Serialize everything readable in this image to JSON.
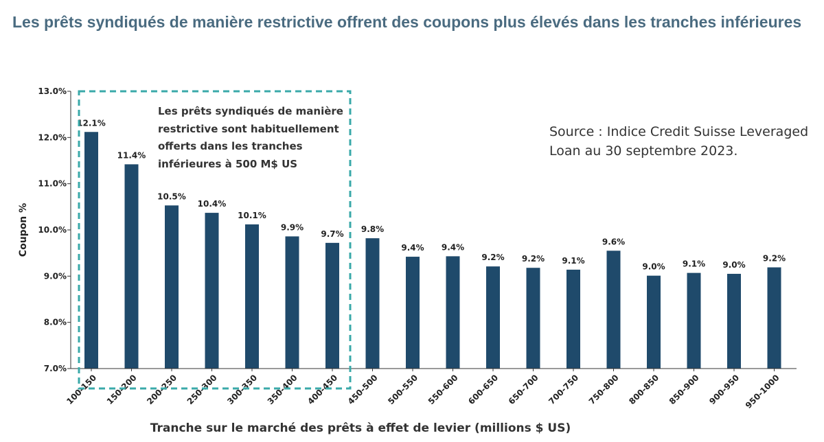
{
  "page": {
    "title": "Les prêts syndiqués de manière restrictive offrent des coupons plus élevés dans les tranches inférieures"
  },
  "annotation": {
    "lines": [
      "Les prêts syndiqués de manière",
      "restrictive sont habituellement",
      "offerts dans les tranches",
      "inférieures à 500 M$ US"
    ]
  },
  "source": {
    "lines": [
      "Source : Indice Credit Suisse Leveraged",
      "Loan au 30 septembre 2023."
    ]
  },
  "colors": {
    "bar": "#1f4a6b",
    "title": "#4a6b80",
    "highlight_box": "#3aa9a9",
    "axis": "#333333"
  },
  "chart_data": {
    "type": "bar",
    "title": "",
    "xlabel": "Tranche sur le marché des prêts à effet de levier (millions $ US)",
    "ylabel": "Coupon %",
    "ylim": [
      7.0,
      13.0
    ],
    "yticks": [
      "7.0%",
      "8.0%",
      "9.0%",
      "10.0%",
      "11.0%",
      "12.0%",
      "13.0%"
    ],
    "ytick_values": [
      7.0,
      8.0,
      9.0,
      10.0,
      11.0,
      12.0,
      13.0
    ],
    "grid": false,
    "legend": "none",
    "categories": [
      "100-150",
      "150-200",
      "200-250",
      "250-300",
      "300-350",
      "350-400",
      "400-450",
      "450-500",
      "500-550",
      "550-600",
      "600-650",
      "650-700",
      "700-750",
      "750-800",
      "800-850",
      "850-900",
      "900-950",
      "950-1000"
    ],
    "values": [
      12.12,
      11.42,
      10.53,
      10.37,
      10.12,
      9.86,
      9.72,
      9.82,
      9.42,
      9.43,
      9.21,
      9.18,
      9.14,
      9.55,
      9.01,
      9.07,
      9.05,
      9.19
    ],
    "value_labels": [
      "12.1%",
      "11.4%",
      "10.5%",
      "10.4%",
      "10.1%",
      "9.9%",
      "9.7%",
      "9.8%",
      "9.4%",
      "9.4%",
      "9.2%",
      "9.2%",
      "9.1%",
      "9.6%",
      "9.0%",
      "9.1%",
      "9.0%",
      "9.2%"
    ],
    "highlight": {
      "from_category": "100-150",
      "to_category": "400-450",
      "style": "dashed box"
    }
  }
}
